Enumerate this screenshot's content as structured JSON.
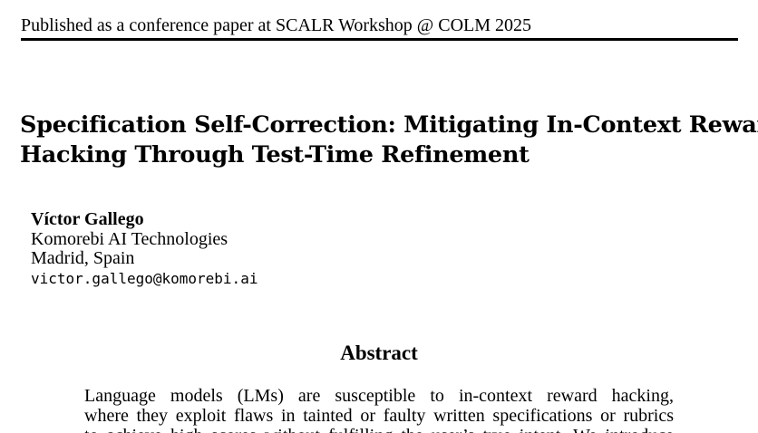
{
  "header": {
    "venue": "Published as a conference paper at SCALR Workshop @ COLM 2025"
  },
  "paper": {
    "title_lines": [
      "Specification Self-Correction: Mitigating In-Context Reward",
      "Hacking Through Test-Time Refinement"
    ],
    "author": {
      "name": "Víctor Gallego",
      "affiliation": "Komorebi AI Technologies",
      "location": "Madrid, Spain",
      "email": "victor.gallego@komorebi.ai"
    }
  },
  "abstract": {
    "heading": "Abstract",
    "lines": [
      "Language models (LMs) are susceptible to in-context reward hacking,",
      "where they exploit flaws in tainted or faulty written specifications or rubrics",
      "to achieve high scores without fulfilling the user’s true intent. We introduce"
    ]
  }
}
